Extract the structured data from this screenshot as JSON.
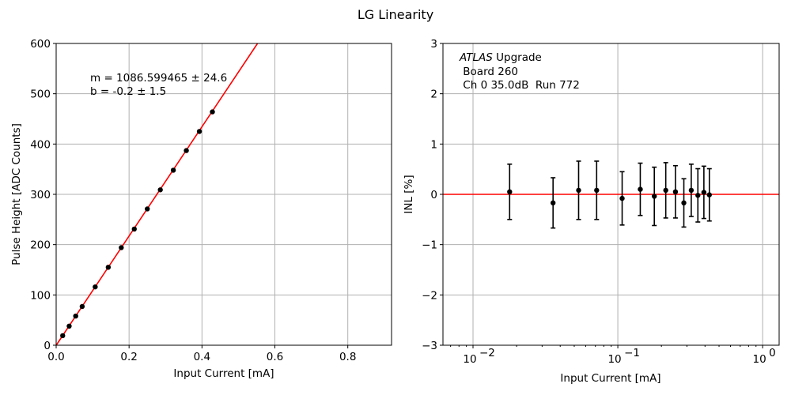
{
  "title": "LG Linearity",
  "chart_data": [
    {
      "type": "scatter",
      "xlabel": "Input Current [mA]",
      "ylabel": "Pulse Height [ADC Counts]",
      "xlim": [
        0,
        0.92
      ],
      "ylim": [
        0,
        600
      ],
      "xticks": [
        0,
        0.2,
        0.4,
        0.6,
        0.8
      ],
      "xtick_labels": [
        "0.0",
        "0.2",
        "0.4",
        "0.6",
        "0.8"
      ],
      "yticks": [
        0,
        100,
        200,
        300,
        400,
        500,
        600
      ],
      "ytick_labels": [
        "0",
        "100",
        "200",
        "300",
        "400",
        "500",
        "600"
      ],
      "grid": true,
      "annotation": [
        "m = 1086.599465 ± 24.6",
        "b = -0.2 ± 1.5"
      ],
      "points": {
        "x": [
          0.0179,
          0.0357,
          0.0536,
          0.0714,
          0.1071,
          0.1429,
          0.1786,
          0.2143,
          0.25,
          0.2857,
          0.3214,
          0.3571,
          0.3929,
          0.4286
        ],
        "y": [
          19,
          38,
          58,
          77,
          116,
          155,
          194,
          231,
          271,
          309,
          348,
          387,
          425,
          464
        ]
      },
      "fit_line": {
        "slope": 1086.599465,
        "intercept": -0.2
      },
      "colors": {
        "points": "#000000",
        "fit": "#ff0000"
      }
    },
    {
      "type": "scatter",
      "xlabel": "Input Current [mA]",
      "ylabel": "INL [%]",
      "xscale": "log",
      "xlim": [
        0.0062,
        1.3
      ],
      "ylim": [
        -3,
        3
      ],
      "xticks": [
        0.01,
        0.1,
        1
      ],
      "xtick_labels": [
        "10",
        "10",
        "10"
      ],
      "xtick_exponents": [
        "−2",
        "−1",
        "0"
      ],
      "yticks": [
        -3,
        -2,
        -1,
        0,
        1,
        2,
        3
      ],
      "ytick_labels": [
        "−3",
        "−2",
        "−1",
        "0",
        "1",
        "2",
        "3"
      ],
      "grid": true,
      "annotation_italic": "ATLAS",
      "annotation": [
        " Upgrade",
        " Board 260",
        " Ch 0 35.0dB  Run 772"
      ],
      "points": {
        "x": [
          0.0179,
          0.0357,
          0.0536,
          0.0714,
          0.1071,
          0.1429,
          0.1786,
          0.2143,
          0.25,
          0.2857,
          0.3214,
          0.3571,
          0.3929,
          0.4286
        ],
        "y": [
          0.05,
          -0.17,
          0.08,
          0.08,
          -0.08,
          0.1,
          -0.04,
          0.08,
          0.05,
          -0.17,
          0.08,
          -0.02,
          0.04,
          -0.01
        ],
        "err": [
          0.55,
          0.5,
          0.58,
          0.58,
          0.53,
          0.52,
          0.58,
          0.55,
          0.52,
          0.48,
          0.52,
          0.53,
          0.52,
          0.52
        ]
      },
      "zero_line": 0,
      "colors": {
        "points": "#000000",
        "zero_line": "#ff0000"
      }
    }
  ]
}
